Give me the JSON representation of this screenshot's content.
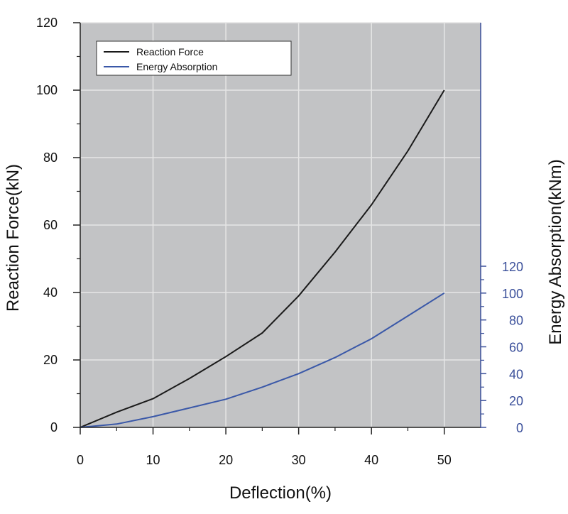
{
  "chart_data": {
    "type": "line",
    "title": "",
    "xlabel": "Deflection(%)",
    "ylabel": "Reaction Force(kN)",
    "y2label": "Energy Absorption(kNm)",
    "xlim": [
      0,
      55
    ],
    "ylim": [
      0,
      120
    ],
    "y2lim": [
      0,
      120
    ],
    "xticks": [
      0,
      10,
      20,
      30,
      40,
      50
    ],
    "yticks": [
      0,
      20,
      40,
      60,
      80,
      100,
      120
    ],
    "y2ticks": [
      0,
      20,
      40,
      60,
      80,
      100,
      120
    ],
    "grid": true,
    "legend_position": "top-left",
    "plot_background": "#c2c3c5",
    "secondary_axis_color": "#3a4f9a",
    "series": [
      {
        "name": "Reaction Force",
        "axis": "left",
        "color": "#1a1a1a",
        "x": [
          0,
          5,
          10,
          15,
          20,
          25,
          30,
          35,
          40,
          45,
          50
        ],
        "y": [
          0,
          4.5,
          8.5,
          14.5,
          21,
          28,
          39,
          52,
          66,
          82,
          100
        ]
      },
      {
        "name": "Energy Absorption",
        "axis": "right",
        "color": "#3a58a8",
        "x": [
          0,
          5,
          10,
          15,
          20,
          25,
          30,
          35,
          40,
          45,
          50
        ],
        "y": [
          0,
          2.5,
          8,
          14.5,
          21,
          30,
          40,
          52,
          66,
          83,
          100
        ]
      }
    ]
  }
}
